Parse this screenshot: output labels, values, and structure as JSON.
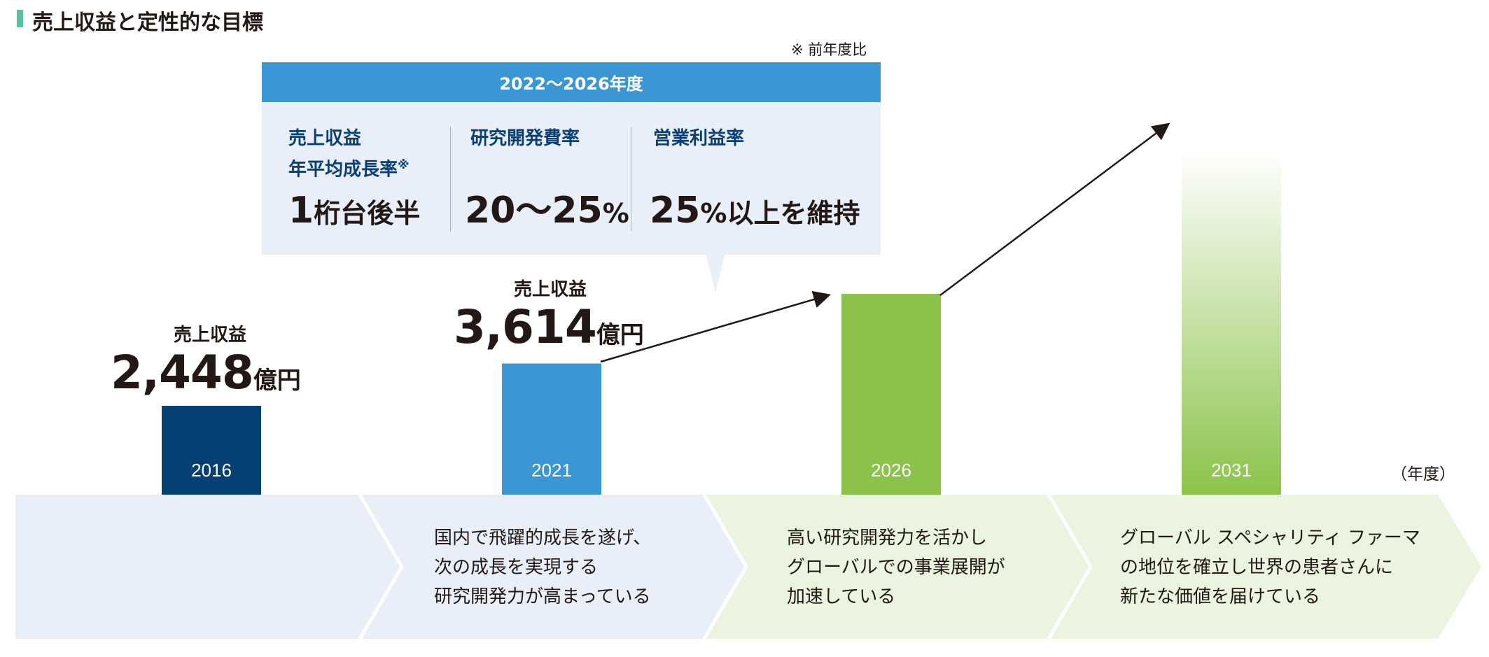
{
  "title": "売上収益と定性的な目標",
  "note": "※ 前年度比",
  "target_box": {
    "period": "2022〜2026年度",
    "kpis": [
      {
        "label_line1": "売上収益",
        "label_line2": "年平均成長率",
        "label_mark": "※",
        "value_num": "1",
        "value_text": "桁台後半"
      },
      {
        "label_line1": "研究開発費率",
        "value_num": "20〜25",
        "value_unit": "%"
      },
      {
        "label_line1": "営業利益率",
        "value_num": "25",
        "value_unit": "%",
        "value_text": "以上を維持"
      }
    ]
  },
  "revenue_callouts": [
    {
      "label": "売上収益",
      "value": "2,448",
      "unit": "億円"
    },
    {
      "label": "売上収益",
      "value": "3,614",
      "unit": "億円"
    }
  ],
  "unit_label": "（年度）",
  "chart_data": {
    "type": "bar",
    "title": "売上収益と定性的な目標",
    "categories": [
      "2016",
      "2021",
      "2026",
      "2031"
    ],
    "values": [
      2448,
      3614,
      null,
      null
    ],
    "value_unit": "億円",
    "bar_colors": [
      "#053f74",
      "#3a97d4",
      "#8bc34a",
      "gradient #8bc34a"
    ],
    "xlabel": "（年度）",
    "ylabel": ""
  },
  "stages": [
    {
      "lines": []
    },
    {
      "lines": [
        "国内で飛躍的成長を遂げ、",
        "次の成長を実現する",
        "研究開発力が高まっている"
      ]
    },
    {
      "lines": [
        "高い研究開発力を活かし",
        "グローバルでの事業展開が",
        "加速している"
      ]
    },
    {
      "lines": [
        "グローバル スペシャリティ ファーマ",
        "の地位を確立し世界の患者さんに",
        "新たな価値を届けている"
      ]
    }
  ],
  "colors": {
    "navy": "#053f74",
    "blue": "#3a97d4",
    "green": "#8bc34a",
    "stage_blue": "#e8eff9",
    "stage_green": "#eaf4df",
    "label_navy": "#0b3f74"
  }
}
